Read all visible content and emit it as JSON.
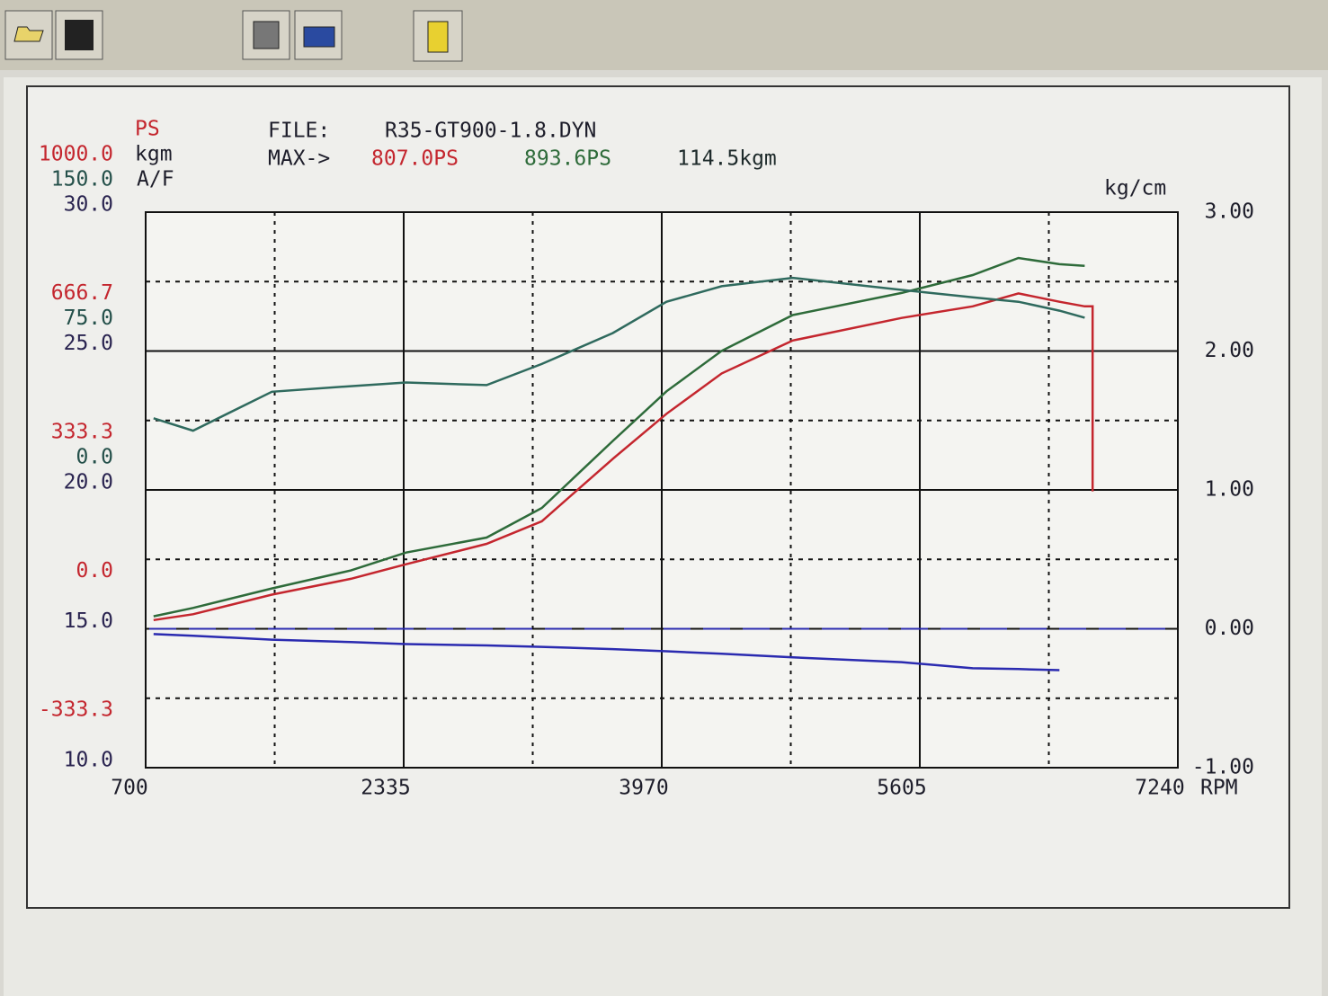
{
  "chart_data": {
    "type": "line",
    "header": {
      "file_label": "FILE:",
      "file_name": "R35-GT900-1.8.DYN",
      "max_label": "MAX->",
      "max_values": [
        {
          "text": "807.0PS",
          "color": "#c4262e"
        },
        {
          "text": "893.6PS",
          "color": "#2e6b3a"
        },
        {
          "text": "114.5kgm",
          "color": "#1d2a2a"
        }
      ]
    },
    "x": [
      750,
      1000,
      1500,
      2000,
      2350,
      2860,
      3210,
      3660,
      4000,
      4350,
      4800,
      5490,
      5940,
      6230,
      6490,
      6650,
      6700,
      6700
    ],
    "xlim": [
      700,
      7240
    ],
    "xticks": [
      700,
      2335,
      3970,
      5605,
      7240
    ],
    "x_minor_ticks": [
      1517.5,
      3152.5,
      4787.5,
      6422.5
    ],
    "xlabel": "RPM",
    "yaxes": [
      {
        "label": "PS",
        "color": "#c4262e",
        "lim": [
          -333.3,
          1000
        ],
        "ticks": [
          {
            "value": 1000,
            "label": "1000.0"
          },
          {
            "value": 666.7,
            "label": "666.7"
          },
          {
            "value": 333.3,
            "label": "333.3"
          },
          {
            "value": 0,
            "label": "0.0"
          },
          {
            "value": -333.3,
            "label": "-333.3"
          }
        ]
      },
      {
        "label": "kgm",
        "color": "#24504a",
        "lim": [
          -150,
          150
        ],
        "ticks": [
          {
            "value": 150,
            "label": "150.0"
          },
          {
            "value": 75,
            "label": "75.0"
          },
          {
            "value": 0,
            "label": "0.0"
          }
        ]
      },
      {
        "label": "A/F",
        "color": "#2a2450",
        "lim": [
          10,
          30
        ],
        "ticks": [
          {
            "value": 30,
            "label": "30.0"
          },
          {
            "value": 25,
            "label": "25.0"
          },
          {
            "value": 20,
            "label": "20.0"
          },
          {
            "value": 15,
            "label": "15.0"
          },
          {
            "value": 10,
            "label": "10.0"
          }
        ]
      }
    ],
    "y2label": "kg/cm",
    "y2lim": [
      -1,
      3
    ],
    "y2ticks": [
      {
        "value": 3,
        "label": "3.00"
      },
      {
        "value": 2,
        "label": "2.00"
      },
      {
        "value": 1,
        "label": "1.00"
      },
      {
        "value": 0,
        "label": "0.00"
      },
      {
        "value": -1,
        "label": "-1.00"
      }
    ],
    "y2_minor_ticks": [
      2.5,
      1.5,
      0.5,
      -0.5
    ],
    "zero_line": 0,
    "zero_line_color": "#2a2ab0",
    "series": [
      {
        "axis": 0,
        "color": "#c4262e",
        "values": [
          21,
          35,
          82,
          120,
          155,
          204,
          258,
          408,
          516,
          613,
          692,
          746,
          774,
          805,
          785,
          774,
          774,
          330
        ]
      },
      {
        "axis": 0,
        "color": "#2e6b3a",
        "values": [
          30,
          50,
          97,
          140,
          183,
          219,
          290,
          451,
          570,
          667,
          753,
          806,
          849,
          890,
          875,
          871,
          null,
          null
        ]
      },
      {
        "axis": 1,
        "color": "#2f6a5e",
        "values": [
          38.7,
          32,
          53,
          56,
          58,
          56.6,
          68,
          84.7,
          101.6,
          110,
          114.5,
          108,
          104,
          101.6,
          96.8,
          93,
          null,
          null
        ]
      },
      {
        "axis": 2,
        "color": "#2a2ab0",
        "values": [
          14.81,
          14.75,
          14.61,
          14.52,
          14.45,
          14.4,
          14.35,
          14.27,
          14.19,
          14.1,
          13.97,
          13.8,
          13.58,
          13.55,
          13.51,
          null,
          null,
          null
        ]
      }
    ]
  }
}
